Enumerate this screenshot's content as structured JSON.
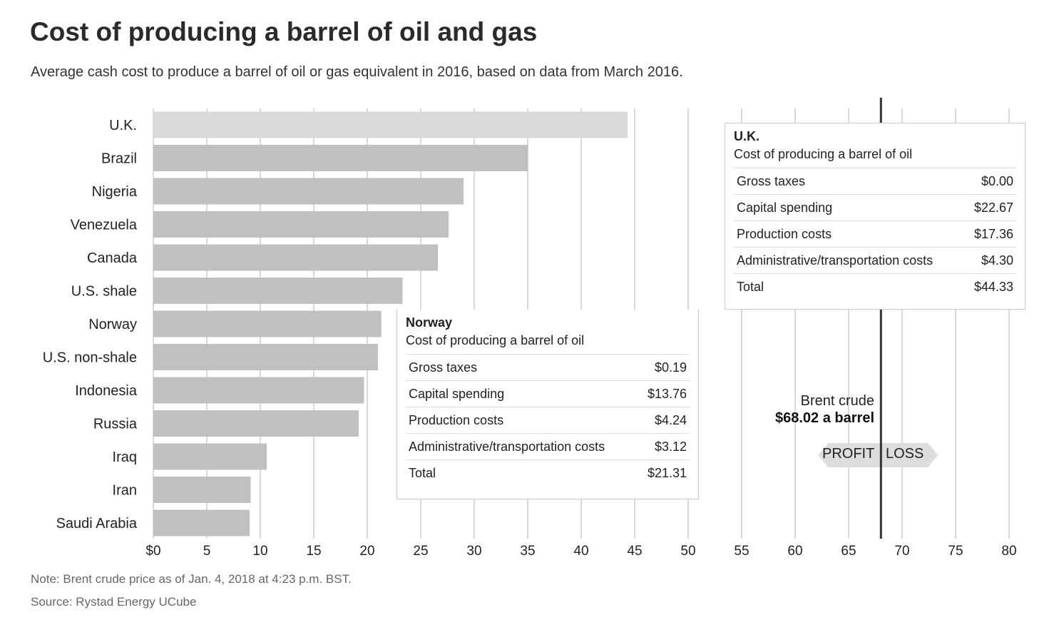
{
  "title": "Cost of producing a barrel of oil and gas",
  "subtitle": "Average cash cost to produce a barrel of oil or gas equivalent in 2016, based on data from March 2016.",
  "note": "Note: Brent crude price as of Jan. 4, 2018 at 4:23 p.m. BST.",
  "source": "Source: Rystad Energy UCube",
  "colors": {
    "bar": "#c0c0c0",
    "bar_highlight": "#d9d9d9",
    "grid": "#bdbdbd",
    "brent_line": "#333333",
    "arrow": "#dddddd"
  },
  "chart_data": {
    "type": "bar",
    "orientation": "horizontal",
    "categories": [
      "U.K.",
      "Brazil",
      "Nigeria",
      "Venezuela",
      "Canada",
      "U.S. shale",
      "Norway",
      "U.S. non-shale",
      "Indonesia",
      "Russia",
      "Iraq",
      "Iran",
      "Saudi Arabia"
    ],
    "values": [
      44.33,
      35.0,
      29.0,
      27.6,
      26.6,
      23.3,
      21.31,
      21.0,
      19.7,
      19.2,
      10.6,
      9.1,
      9.0
    ],
    "xlim": [
      0,
      80
    ],
    "xticks": [
      0,
      5,
      10,
      15,
      20,
      25,
      30,
      35,
      40,
      45,
      50,
      55,
      60,
      65,
      70,
      75,
      80
    ],
    "xtick_labels": [
      "$0",
      "5",
      "10",
      "15",
      "20",
      "25",
      "30",
      "35",
      "40",
      "45",
      "50",
      "55",
      "60",
      "65",
      "70",
      "75",
      "80"
    ],
    "grid": true,
    "highlighted": "U.K.",
    "reference_line": {
      "value": 68.02,
      "label": "Brent crude",
      "value_label": "$68.02 a barrel"
    },
    "profit_label": "PROFIT",
    "loss_label": "LOSS"
  },
  "tooltips": {
    "uk": {
      "country": "U.K.",
      "caption": "Cost of producing a barrel of oil",
      "rows": [
        {
          "label": "Gross taxes",
          "value": "$0.00"
        },
        {
          "label": "Capital spending",
          "value": "$22.67"
        },
        {
          "label": "Production costs",
          "value": "$17.36"
        },
        {
          "label": "Administrative/transportation costs",
          "value": "$4.30"
        },
        {
          "label": "Total",
          "value": "$44.33"
        }
      ]
    },
    "norway": {
      "country": "Norway",
      "caption": "Cost of producing a barrel of oil",
      "rows": [
        {
          "label": "Gross taxes",
          "value": "$0.19"
        },
        {
          "label": "Capital spending",
          "value": "$13.76"
        },
        {
          "label": "Production costs",
          "value": "$4.24"
        },
        {
          "label": "Administrative/transportation costs",
          "value": "$3.12"
        },
        {
          "label": "Total",
          "value": "$21.31"
        }
      ]
    }
  }
}
